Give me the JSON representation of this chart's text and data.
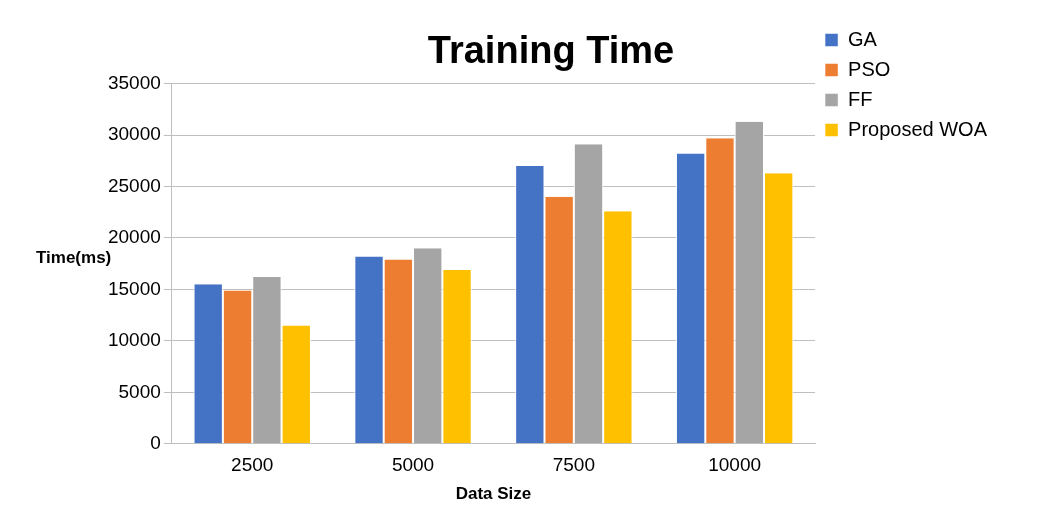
{
  "chart_data": {
    "type": "bar",
    "title": "Training Time",
    "xlabel": "Data Size",
    "ylabel": "Time(ms)",
    "categories": [
      "2500",
      "5000",
      "7500",
      "10000"
    ],
    "series": [
      {
        "name": "GA",
        "color": "#4472c4",
        "values": [
          15500,
          18200,
          27000,
          28200
        ]
      },
      {
        "name": "PSO",
        "color": "#ed7d31",
        "values": [
          14900,
          17900,
          24000,
          29700
        ]
      },
      {
        "name": "FF",
        "color": "#a5a5a5",
        "values": [
          16200,
          19000,
          29100,
          31300
        ]
      },
      {
        "name": "Proposed WOA",
        "color": "#ffc000",
        "values": [
          11500,
          16900,
          22600,
          26300
        ]
      }
    ],
    "ylim": [
      0,
      35000
    ],
    "yticks": [
      0,
      5000,
      10000,
      15000,
      20000,
      25000,
      30000,
      35000
    ],
    "grid": "y",
    "legend": "top right"
  }
}
